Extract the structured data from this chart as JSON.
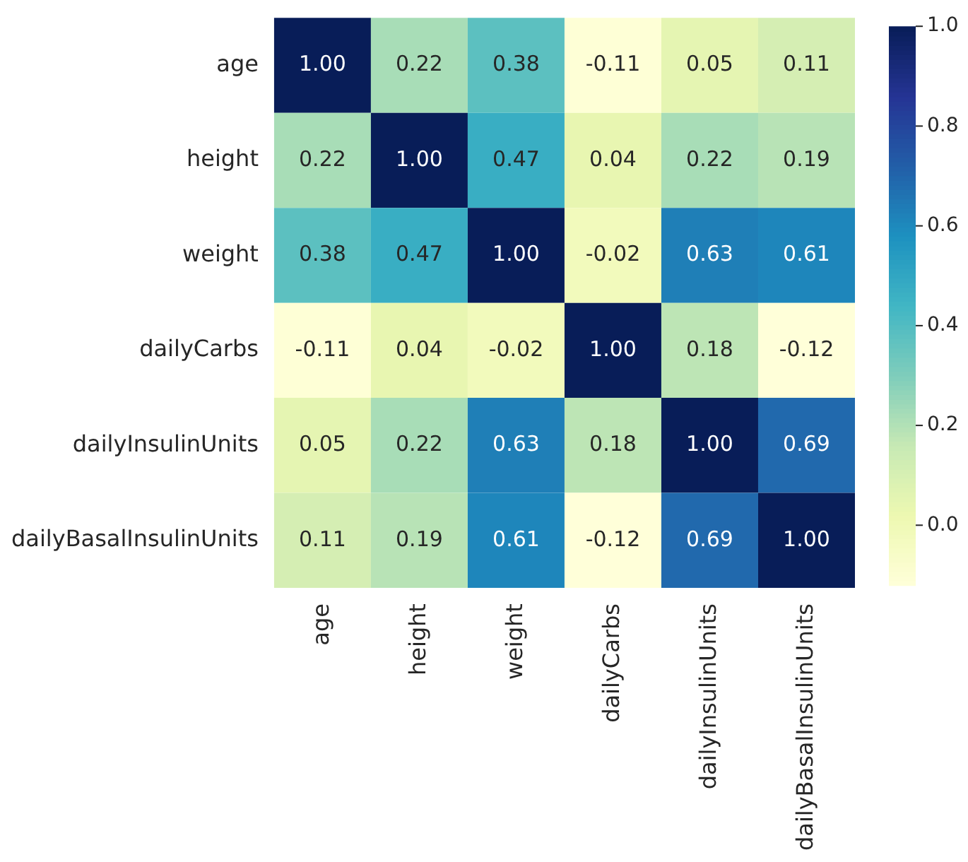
{
  "chart_data": {
    "type": "heatmap",
    "categories": [
      "age",
      "height",
      "weight",
      "dailyCarbs",
      "dailyInsulinUnits",
      "dailyBasalInsulinUnits"
    ],
    "y_categories": [
      "age",
      "height",
      "weight",
      "dailyCarbs",
      "dailyInsulinUnits",
      "dailyBasalInsulinUnits"
    ],
    "cells": [
      [
        1.0,
        0.22,
        0.38,
        -0.11,
        0.05,
        0.11
      ],
      [
        0.22,
        1.0,
        0.47,
        0.04,
        0.22,
        0.19
      ],
      [
        0.38,
        0.47,
        1.0,
        -0.02,
        0.63,
        0.61
      ],
      [
        -0.11,
        0.04,
        -0.02,
        1.0,
        0.18,
        -0.12
      ],
      [
        0.05,
        0.22,
        0.63,
        0.18,
        1.0,
        0.69
      ],
      [
        0.11,
        0.19,
        0.61,
        -0.12,
        0.69,
        1.0
      ]
    ],
    "cell_labels": [
      [
        "1.00",
        "0.22",
        "0.38",
        "-0.11",
        "0.05",
        "0.11"
      ],
      [
        "0.22",
        "1.00",
        "0.47",
        "0.04",
        "0.22",
        "0.19"
      ],
      [
        "0.38",
        "0.47",
        "1.00",
        "-0.02",
        "0.63",
        "0.61"
      ],
      [
        "-0.11",
        "0.04",
        "-0.02",
        "1.00",
        "0.18",
        "-0.12"
      ],
      [
        "0.05",
        "0.22",
        "0.63",
        "0.18",
        "1.00",
        "0.69"
      ],
      [
        "0.11",
        "0.19",
        "0.61",
        "-0.12",
        "0.69",
        "1.00"
      ]
    ],
    "clim": [
      -0.12,
      1.0
    ],
    "cticks": [
      {
        "value": 0,
        "label": "0.0"
      },
      {
        "value": 0.2,
        "label": "0.2"
      },
      {
        "value": 0.4,
        "label": "0.4"
      },
      {
        "value": 0.6,
        "label": "0.6"
      },
      {
        "value": 0.8,
        "label": "0.8"
      },
      {
        "value": 1,
        "label": "1.0"
      }
    ]
  }
}
